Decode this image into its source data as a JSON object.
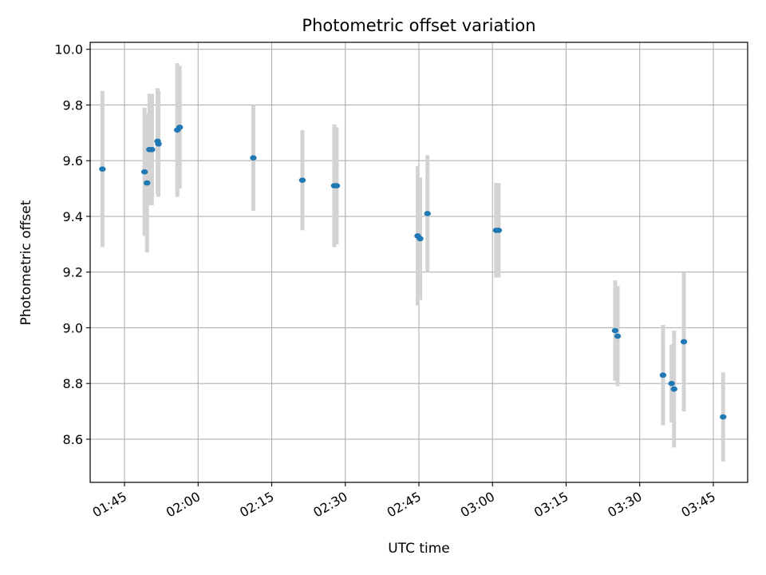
{
  "chart_data": {
    "type": "scatter",
    "title": "Photometric offset variation",
    "xlabel": "UTC time",
    "ylabel": "Photometric offset",
    "x_axis": "time",
    "xlim": [
      "01:38",
      "03:52"
    ],
    "ylim": [
      8.445,
      10.025
    ],
    "xticks": [
      "01:45",
      "02:00",
      "02:15",
      "02:30",
      "02:45",
      "03:00",
      "03:15",
      "03:30",
      "03:45"
    ],
    "yticks": [
      8.6,
      8.8,
      9.0,
      9.2,
      9.4,
      9.6,
      9.8,
      10.0
    ],
    "ytick_labels": [
      "8.6",
      "8.8",
      "9.0",
      "9.2",
      "9.4",
      "9.6",
      "9.8",
      "10.0"
    ],
    "grid": true,
    "legend": "none",
    "colors": {
      "marker": "#1f77b4",
      "errorbar": "#d3d3d3",
      "grid": "#b0b0b0",
      "axes": "#000000"
    },
    "series": [
      {
        "points": [
          {
            "x": "01:40:30",
            "y": 9.57,
            "err": 0.28
          },
          {
            "x": "01:49:05",
            "y": 9.56,
            "err": 0.23
          },
          {
            "x": "01:49:35",
            "y": 9.52,
            "err": 0.25
          },
          {
            "x": "01:50:05",
            "y": 9.64,
            "err": 0.2
          },
          {
            "x": "01:50:35",
            "y": 9.64,
            "err": 0.2
          },
          {
            "x": "01:51:45",
            "y": 9.67,
            "err": 0.19
          },
          {
            "x": "01:51:55",
            "y": 9.66,
            "err": 0.19
          },
          {
            "x": "01:55:45",
            "y": 9.71,
            "err": 0.24
          },
          {
            "x": "01:56:15",
            "y": 9.72,
            "err": 0.22
          },
          {
            "x": "02:11:15",
            "y": 9.61,
            "err": 0.19
          },
          {
            "x": "02:21:15",
            "y": 9.53,
            "err": 0.18
          },
          {
            "x": "02:27:45",
            "y": 9.51,
            "err": 0.22
          },
          {
            "x": "02:28:15",
            "y": 9.51,
            "err": 0.21
          },
          {
            "x": "02:44:45",
            "y": 9.33,
            "err": 0.25
          },
          {
            "x": "02:45:15",
            "y": 9.32,
            "err": 0.22
          },
          {
            "x": "02:46:45",
            "y": 9.41,
            "err": 0.21
          },
          {
            "x": "03:00:45",
            "y": 9.35,
            "err": 0.17
          },
          {
            "x": "03:01:15",
            "y": 9.35,
            "err": 0.17
          },
          {
            "x": "03:25:00",
            "y": 8.99,
            "err": 0.18
          },
          {
            "x": "03:25:30",
            "y": 8.97,
            "err": 0.18
          },
          {
            "x": "03:34:45",
            "y": 8.83,
            "err": 0.18
          },
          {
            "x": "03:36:30",
            "y": 8.8,
            "err": 0.14
          },
          {
            "x": "03:37:00",
            "y": 8.78,
            "err": 0.21
          },
          {
            "x": "03:39:00",
            "y": 8.95,
            "err": 0.25
          },
          {
            "x": "03:47:00",
            "y": 8.68,
            "err": 0.16
          }
        ]
      }
    ]
  }
}
